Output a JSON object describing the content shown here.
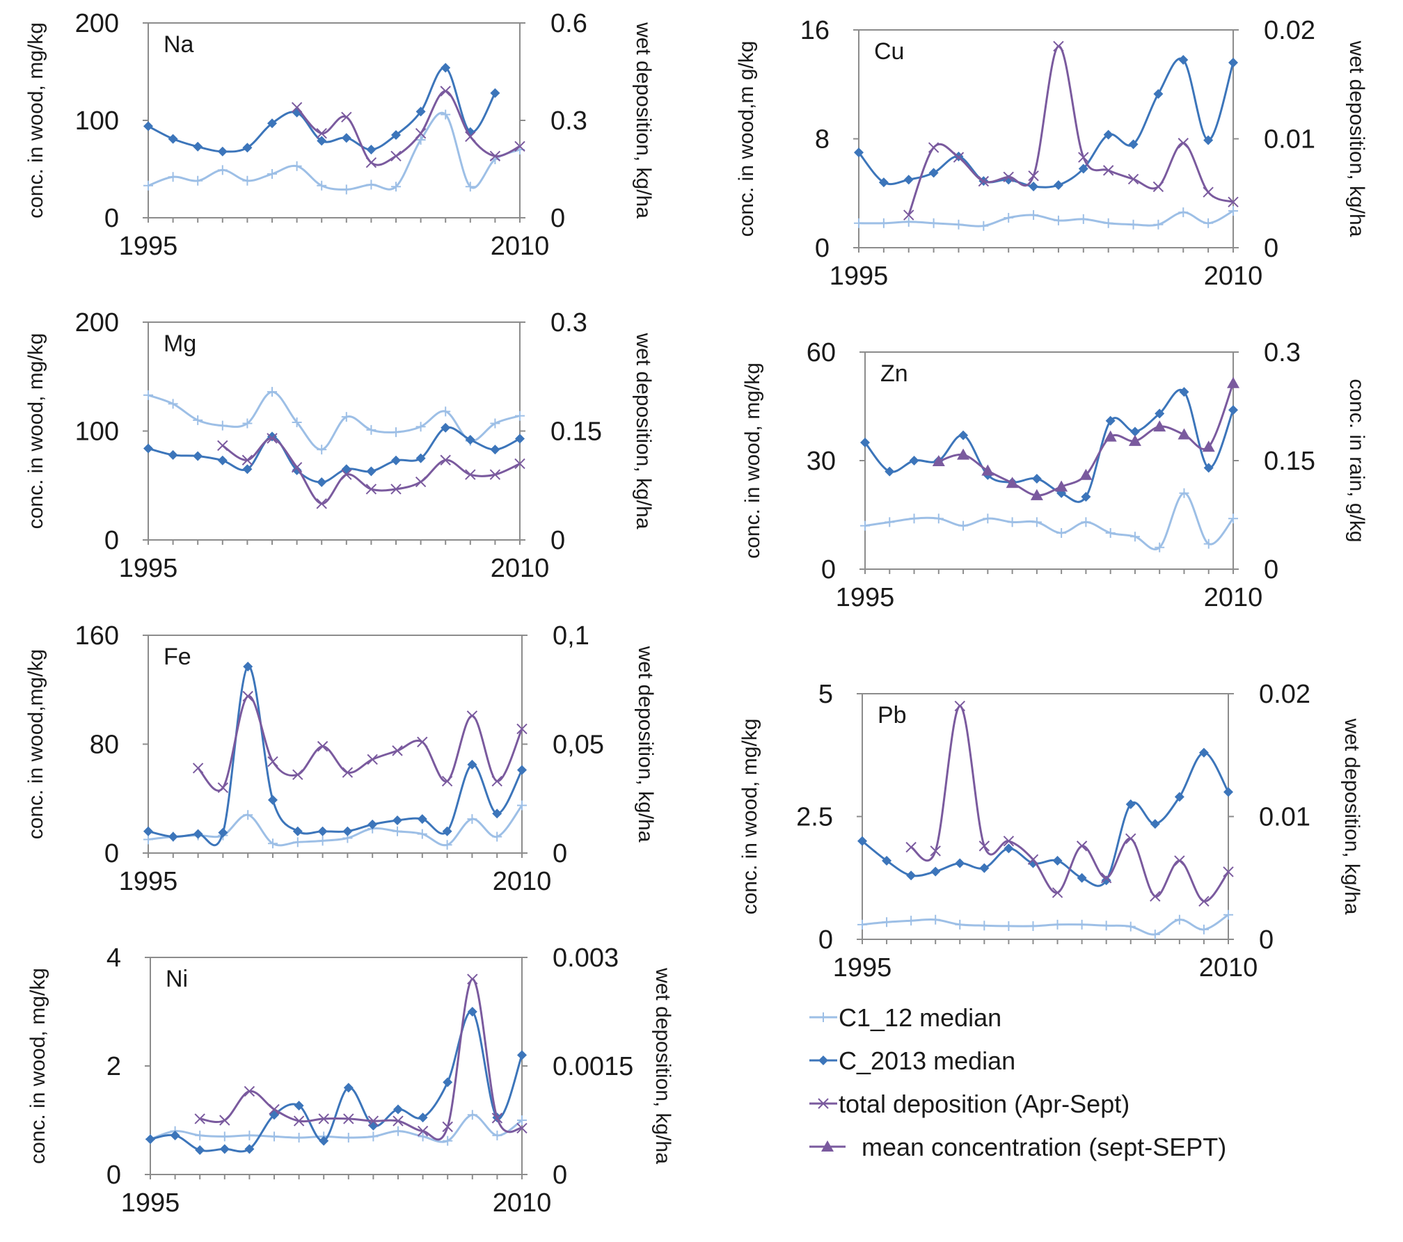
{
  "colors": {
    "c1_12": "#9dbfe6",
    "c_2013": "#3c75ba",
    "deposition": "#7a5a9e",
    "frame": "#8c8c8c"
  },
  "legend": [
    {
      "label": "C1_12  median",
      "color": "#9dbfe6",
      "marker": "plus"
    },
    {
      "label": "C_2013 median",
      "color": "#3c75ba",
      "marker": "diamond"
    },
    {
      "label": "total deposition (Apr-Sept)",
      "color": "#7a5a9e",
      "marker": "x"
    },
    {
      "label": "mean concentration (sept-SEPT)",
      "color": "#7a5a9e",
      "marker": "triangle"
    }
  ],
  "chart_data": [
    {
      "type": "line",
      "element": "Na",
      "ylabel": "conc. in wood, mg/kg",
      "y2label": "wet deposition, kg/ha",
      "xlim": [
        1995,
        2010
      ],
      "x_ticks": [
        "1995",
        "2010"
      ],
      "ylim": [
        0,
        200
      ],
      "y_ticks": [
        "0",
        "100",
        "200"
      ],
      "y2lim": [
        0,
        0.6
      ],
      "y2_ticks": [
        "0",
        "0.3",
        "0.6"
      ],
      "series": [
        {
          "key": "c1_12",
          "axis": "left",
          "marker": "plus",
          "x": [
            1995,
            1996,
            1997,
            1998,
            1999,
            2000,
            2001,
            2002,
            2003,
            2004,
            2005,
            2006,
            2007,
            2008,
            2009,
            2010
          ],
          "y": [
            33,
            42,
            38,
            49,
            38,
            45,
            53,
            33,
            29,
            34,
            32,
            80,
            106,
            32,
            60,
            70
          ]
        },
        {
          "key": "c_2013",
          "axis": "left",
          "marker": "diamond",
          "x": [
            1995,
            1996,
            1997,
            1998,
            1999,
            2000,
            2001,
            2002,
            2003,
            2004,
            2005,
            2006,
            2007,
            2008,
            2009
          ],
          "y": [
            94,
            81,
            73,
            68,
            72,
            97,
            108,
            79,
            82,
            70,
            85,
            109,
            154,
            88,
            128
          ]
        },
        {
          "key": "deposition",
          "axis": "right",
          "marker": "x",
          "x": [
            2001,
            2002,
            2003,
            2004,
            2005,
            2006,
            2007,
            2008,
            2009,
            2010
          ],
          "y": [
            0.34,
            0.26,
            0.31,
            0.17,
            0.19,
            0.26,
            0.39,
            0.25,
            0.19,
            0.22
          ]
        }
      ]
    },
    {
      "type": "line",
      "element": "Mg",
      "ylabel": "conc. in wood, mg/kg",
      "y2label": "wet deposition, kg/ha",
      "xlim": [
        1995,
        2010
      ],
      "x_ticks": [
        "1995",
        "2010"
      ],
      "ylim": [
        0,
        200
      ],
      "y_ticks": [
        "0",
        "100",
        "200"
      ],
      "y2lim": [
        0,
        0.3
      ],
      "y2_ticks": [
        "0",
        "0.15",
        "0.3"
      ],
      "series": [
        {
          "key": "c1_12",
          "axis": "left",
          "marker": "plus",
          "x": [
            1995,
            1996,
            1997,
            1998,
            1999,
            2000,
            2001,
            2002,
            2003,
            2004,
            2005,
            2006,
            2007,
            2008,
            2009,
            2010
          ],
          "y": [
            133,
            125,
            110,
            105,
            107,
            136,
            108,
            83,
            113,
            101,
            99,
            104,
            118,
            91,
            107,
            114
          ]
        },
        {
          "key": "c_2013",
          "axis": "left",
          "marker": "diamond",
          "x": [
            1995,
            1996,
            1997,
            1998,
            1999,
            2000,
            2001,
            2002,
            2003,
            2004,
            2005,
            2006,
            2007,
            2008,
            2009,
            2010
          ],
          "y": [
            84,
            78,
            77,
            73,
            65,
            95,
            64,
            53,
            65,
            63,
            73,
            75,
            103,
            92,
            83,
            93
          ]
        },
        {
          "key": "deposition",
          "axis": "right",
          "marker": "x",
          "x": [
            1998,
            1999,
            2000,
            2001,
            2002,
            2003,
            2004,
            2005,
            2006,
            2007,
            2008,
            2009,
            2010
          ],
          "y": [
            0.13,
            0.11,
            0.14,
            0.1,
            0.05,
            0.09,
            0.07,
            0.07,
            0.08,
            0.11,
            0.09,
            0.09,
            0.105
          ]
        }
      ]
    },
    {
      "type": "line",
      "element": "Fe",
      "ylabel": "conc. in wood,mg/kg",
      "y2label": "wet deposition, kg/ha",
      "xlim": [
        1995,
        2010
      ],
      "x_ticks": [
        "1995",
        "2010"
      ],
      "ylim": [
        0,
        160
      ],
      "y_ticks": [
        "0",
        "80",
        "160"
      ],
      "y2lim": [
        0,
        0.1
      ],
      "y2_ticks": [
        "0",
        "0,05",
        "0,1"
      ],
      "series": [
        {
          "key": "c1_12",
          "axis": "left",
          "marker": "plus",
          "x": [
            1995,
            1996,
            1997,
            1998,
            1999,
            2000,
            2001,
            2002,
            2003,
            2004,
            2005,
            2006,
            2007,
            2008,
            2009,
            2010
          ],
          "y": [
            10,
            12,
            13,
            13,
            28,
            7,
            8,
            9,
            11,
            18,
            16,
            14,
            6,
            25,
            12,
            35
          ]
        },
        {
          "key": "c_2013",
          "axis": "left",
          "marker": "diamond",
          "x": [
            1995,
            1996,
            1997,
            1998,
            1999,
            2000,
            2001,
            2002,
            2003,
            2004,
            2005,
            2006,
            2007,
            2008,
            2009,
            2010
          ],
          "y": [
            16,
            12,
            14,
            15,
            137,
            39,
            16,
            16,
            16,
            21,
            24,
            25,
            16,
            65,
            29,
            61
          ]
        },
        {
          "key": "deposition",
          "axis": "right",
          "marker": "x",
          "x": [
            1997,
            1998,
            1999,
            2000,
            2001,
            2002,
            2003,
            2004,
            2005,
            2006,
            2007,
            2008,
            2009,
            2010
          ],
          "y": [
            0.039,
            0.03,
            0.072,
            0.042,
            0.036,
            0.049,
            0.037,
            0.043,
            0.047,
            0.051,
            0.033,
            0.063,
            0.033,
            0.057
          ]
        }
      ]
    },
    {
      "type": "line",
      "element": "Ni",
      "ylabel": "conc. in wood, mg/kg",
      "y2label": "wet deposition, kg/ha",
      "xlim": [
        1995,
        2010
      ],
      "x_ticks": [
        "1995",
        "2010"
      ],
      "ylim": [
        0,
        4
      ],
      "y_ticks": [
        "0",
        "2",
        "4"
      ],
      "y2lim": [
        0,
        0.003
      ],
      "y2_ticks": [
        "0",
        "0.0015",
        "0.003"
      ],
      "series": [
        {
          "key": "c1_12",
          "axis": "left",
          "marker": "plus",
          "x": [
            1995,
            1996,
            1997,
            1998,
            1999,
            2000,
            2001,
            2002,
            2003,
            2004,
            2005,
            2006,
            2007,
            2008,
            2009,
            2010
          ],
          "y": [
            0.65,
            0.8,
            0.72,
            0.7,
            0.72,
            0.7,
            0.68,
            0.7,
            0.68,
            0.7,
            0.8,
            0.7,
            0.62,
            1.1,
            0.72,
            1.0
          ]
        },
        {
          "key": "c_2013",
          "axis": "left",
          "marker": "diamond",
          "x": [
            1995,
            1996,
            1997,
            1998,
            1999,
            2000,
            2001,
            2002,
            2003,
            2004,
            2005,
            2006,
            2007,
            2008,
            2009,
            2010
          ],
          "y": [
            0.65,
            0.72,
            0.45,
            0.47,
            0.47,
            1.1,
            1.27,
            0.62,
            1.6,
            0.9,
            1.2,
            1.05,
            1.7,
            3.0,
            1.05,
            2.2
          ]
        },
        {
          "key": "deposition",
          "axis": "right",
          "marker": "x",
          "x": [
            1997,
            1998,
            1999,
            2000,
            2001,
            2002,
            2003,
            2004,
            2005,
            2006,
            2007,
            2008,
            2009,
            2010
          ],
          "y": [
            0.00077,
            0.00075,
            0.00115,
            0.0009,
            0.00074,
            0.00077,
            0.00077,
            0.00074,
            0.00074,
            0.0006,
            0.00066,
            0.0027,
            0.00078,
            0.00064
          ]
        }
      ]
    },
    {
      "type": "line",
      "element": "Cu",
      "ylabel": "conc. in wood,m g/kg",
      "y2label": "wet deposition, kg/ha",
      "xlim": [
        1995,
        2010
      ],
      "x_ticks": [
        "1995",
        "2010"
      ],
      "ylim": [
        0,
        16
      ],
      "y_ticks": [
        "0",
        "8",
        "16"
      ],
      "y2lim": [
        0,
        0.02
      ],
      "y2_ticks": [
        "0",
        "0.01",
        "0.02"
      ],
      "series": [
        {
          "key": "c1_12",
          "axis": "left",
          "marker": "plus",
          "x": [
            1995,
            1996,
            1997,
            1998,
            1999,
            2000,
            2001,
            2002,
            2003,
            2004,
            2005,
            2006,
            2007,
            2008,
            2009,
            2010
          ],
          "y": [
            1.8,
            1.8,
            1.9,
            1.8,
            1.7,
            1.6,
            2.2,
            2.4,
            2.0,
            2.1,
            1.8,
            1.7,
            1.7,
            2.6,
            1.8,
            2.7
          ]
        },
        {
          "key": "c_2013",
          "axis": "left",
          "marker": "diamond",
          "x": [
            1995,
            1996,
            1997,
            1998,
            1999,
            2000,
            2001,
            2002,
            2003,
            2004,
            2005,
            2006,
            2007,
            2008,
            2009,
            2010
          ],
          "y": [
            7.0,
            4.8,
            5.0,
            5.5,
            6.7,
            4.9,
            5.0,
            4.5,
            4.6,
            5.8,
            8.3,
            7.6,
            11.3,
            13.8,
            7.9,
            13.6
          ]
        },
        {
          "key": "deposition",
          "axis": "right",
          "marker": "x",
          "x": [
            1997,
            1998,
            1999,
            2000,
            2001,
            2002,
            2003,
            2004,
            2005,
            2006,
            2007,
            2008,
            2009,
            2010
          ],
          "y": [
            0.003,
            0.0092,
            0.0083,
            0.0061,
            0.0065,
            0.0066,
            0.0185,
            0.0083,
            0.0071,
            0.0063,
            0.0056,
            0.0096,
            0.0051,
            0.0042
          ]
        }
      ]
    },
    {
      "type": "line",
      "element": "Zn",
      "ylabel": "conc. in wood, mg/kg",
      "y2label": "conc. in rain, g/kg",
      "xlim": [
        1995,
        2010
      ],
      "x_ticks": [
        "1995",
        "2010"
      ],
      "ylim": [
        0,
        60
      ],
      "y_ticks": [
        "0",
        "30",
        "60"
      ],
      "y2lim": [
        0,
        0.3
      ],
      "y2_ticks": [
        "0",
        "0.15",
        "0.3"
      ],
      "series": [
        {
          "key": "c1_12",
          "axis": "left",
          "marker": "plus",
          "x": [
            1995,
            1996,
            1997,
            1998,
            1999,
            2000,
            2001,
            2002,
            2003,
            2004,
            2005,
            2006,
            2007,
            2008,
            2009,
            2010
          ],
          "y": [
            12,
            13,
            14,
            14,
            12,
            14,
            13,
            13,
            10,
            13,
            10,
            9,
            6,
            21,
            7,
            14
          ]
        },
        {
          "key": "c_2013",
          "axis": "left",
          "marker": "diamond",
          "x": [
            1995,
            1996,
            1997,
            1998,
            1999,
            2000,
            2001,
            2002,
            2003,
            2004,
            2005,
            2006,
            2007,
            2008,
            2009,
            2010
          ],
          "y": [
            35,
            27,
            30,
            30,
            37,
            26,
            24,
            25,
            21,
            20,
            41,
            38,
            43,
            49,
            28,
            44
          ]
        },
        {
          "key": "deposition",
          "axis": "right",
          "marker": "triangle",
          "x": [
            1998,
            1999,
            2000,
            2001,
            2002,
            2003,
            2004,
            2005,
            2006,
            2007,
            2008,
            2009,
            2010
          ],
          "y": [
            0.149,
            0.158,
            0.136,
            0.119,
            0.102,
            0.114,
            0.13,
            0.183,
            0.177,
            0.197,
            0.186,
            0.169,
            0.257
          ]
        }
      ]
    },
    {
      "type": "line",
      "element": "Pb",
      "ylabel": "conc. in wood, mg/kg",
      "y2label": "wet deposition, kg/ha",
      "xlim": [
        1995,
        2010
      ],
      "x_ticks": [
        "1995",
        "2010"
      ],
      "ylim": [
        0,
        5
      ],
      "y_ticks": [
        "0",
        "2.5",
        "5"
      ],
      "y2lim": [
        0,
        0.02
      ],
      "y2_ticks": [
        "0",
        "0.01",
        "0.02"
      ],
      "series": [
        {
          "key": "c1_12",
          "axis": "left",
          "marker": "plus",
          "x": [
            1995,
            1996,
            1997,
            1998,
            1999,
            2000,
            2001,
            2002,
            2003,
            2004,
            2005,
            2006,
            2007,
            2008,
            2009,
            2010
          ],
          "y": [
            0.3,
            0.35,
            0.38,
            0.4,
            0.3,
            0.28,
            0.27,
            0.27,
            0.3,
            0.3,
            0.28,
            0.26,
            0.1,
            0.4,
            0.2,
            0.5
          ]
        },
        {
          "key": "c_2013",
          "axis": "left",
          "marker": "diamond",
          "x": [
            1995,
            1996,
            1997,
            1998,
            1999,
            2000,
            2001,
            2002,
            2003,
            2004,
            2005,
            2006,
            2007,
            2008,
            2009,
            2010
          ],
          "y": [
            2.0,
            1.6,
            1.3,
            1.38,
            1.55,
            1.45,
            1.85,
            1.55,
            1.6,
            1.25,
            1.2,
            2.75,
            2.35,
            2.9,
            3.8,
            3.0
          ]
        },
        {
          "key": "deposition",
          "axis": "right",
          "marker": "x",
          "x": [
            1997,
            1998,
            1999,
            2000,
            2001,
            2002,
            2003,
            2004,
            2005,
            2006,
            2007,
            2008,
            2009,
            2010
          ],
          "y": [
            0.0075,
            0.0072,
            0.019,
            0.0076,
            0.008,
            0.0065,
            0.0038,
            0.0076,
            0.005,
            0.0082,
            0.0035,
            0.0064,
            0.0031,
            0.0055
          ]
        }
      ]
    }
  ]
}
